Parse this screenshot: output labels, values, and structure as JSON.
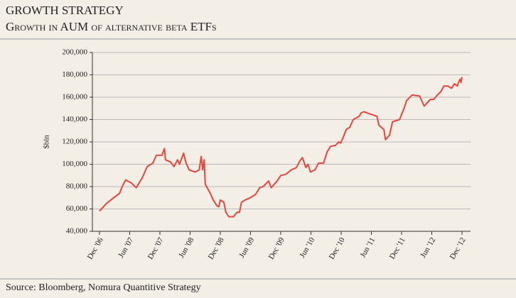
{
  "chart_data": {
    "type": "line",
    "title": "GROWTH STRATEGY",
    "subtitle": "Growth in AUM of alternative beta ETFs",
    "y_label": "$bln",
    "source": "Source: Bloomberg, Nomura Quantitive Strategy",
    "ylim": [
      40000,
      200000
    ],
    "yticks": [
      {
        "value": 40000,
        "label": "40,000"
      },
      {
        "value": 60000,
        "label": "60,000"
      },
      {
        "value": 80000,
        "label": "80,000"
      },
      {
        "value": 100000,
        "label": "100,000"
      },
      {
        "value": 120000,
        "label": "120,000"
      },
      {
        "value": 140000,
        "label": "140,000"
      },
      {
        "value": 160000,
        "label": "160,000"
      },
      {
        "value": 180000,
        "label": "180,000"
      },
      {
        "value": 200000,
        "label": "200,000"
      }
    ],
    "xlim": [
      0,
      72
    ],
    "xticks": [
      {
        "value": 0,
        "label": "Dec '06"
      },
      {
        "value": 6,
        "label": "Jun '07"
      },
      {
        "value": 12,
        "label": "Dec '07"
      },
      {
        "value": 18,
        "label": "Jun '08"
      },
      {
        "value": 24,
        "label": "Dec '08"
      },
      {
        "value": 30,
        "label": "Jun '09"
      },
      {
        "value": 36,
        "label": "Dec '09"
      },
      {
        "value": 42,
        "label": "Jun '10"
      },
      {
        "value": 48,
        "label": "Dec '10"
      },
      {
        "value": 54,
        "label": "Jun '11"
      },
      {
        "value": 60,
        "label": "Dec '11"
      },
      {
        "value": 66,
        "label": "Jun '12"
      },
      {
        "value": 72,
        "label": "Dec '12"
      }
    ],
    "grid": true,
    "series": [
      {
        "color": "#e8453c",
        "x": [
          0,
          1.4,
          2.8,
          4,
          4.5,
          5.2,
          6.4,
          7.3,
          8.5,
          9.5,
          10.6,
          11.3,
          12.4,
          12.9,
          13.1,
          14.1,
          14.8,
          15.5,
          15.9,
          16.7,
          17.2,
          17.8,
          19,
          19.8,
          20.2,
          20.5,
          20.8,
          21,
          21.9,
          22.6,
          23.3,
          23.7,
          24,
          24.7,
          25.1,
          25.7,
          26.6,
          27.3,
          27.8,
          28.2,
          28.9,
          29.9,
          31,
          31.8,
          32.5,
          33.6,
          34.1,
          35.3,
          36,
          37,
          38.1,
          39.1,
          39.8,
          40.3,
          41,
          41.4,
          41.9,
          42.8,
          43.5,
          44.5,
          45.2,
          45.9,
          46.9,
          47.5,
          47.9,
          48.4,
          49,
          49.7,
          50.4,
          51.6,
          52,
          52.5,
          53.7,
          55.1,
          55.5,
          56.5,
          56.8,
          57.6,
          58.2,
          59.6,
          60.5,
          61,
          62.1,
          63.6,
          64.5,
          65.7,
          66.4,
          67.1,
          67.8,
          68.4,
          69.2,
          69.9,
          70.5,
          71.1,
          71.3,
          71.6,
          71.8,
          72
        ],
        "values": [
          58000,
          65000,
          70000,
          74000,
          80000,
          86000,
          83000,
          79000,
          88000,
          98000,
          101000,
          108000,
          108000,
          114000,
          104000,
          102000,
          98000,
          104000,
          100000,
          110000,
          101000,
          95000,
          93000,
          95000,
          107000,
          95000,
          104000,
          82000,
          75000,
          68000,
          63000,
          62000,
          68000,
          66000,
          57000,
          53000,
          53000,
          57000,
          57000,
          66000,
          68000,
          70000,
          73000,
          79000,
          80000,
          85000,
          79000,
          85000,
          90000,
          91000,
          95000,
          97000,
          103000,
          106000,
          97000,
          100000,
          93000,
          95000,
          101000,
          101000,
          111000,
          116000,
          117000,
          120000,
          119000,
          124000,
          131000,
          133000,
          140000,
          143000,
          146000,
          147000,
          145000,
          143000,
          135000,
          131000,
          122000,
          126000,
          138000,
          140000,
          150000,
          157000,
          162000,
          161000,
          152000,
          158000,
          158000,
          162000,
          165000,
          170000,
          170000,
          168000,
          172000,
          170000,
          173000,
          176000,
          173000,
          178000
        ]
      }
    ]
  }
}
